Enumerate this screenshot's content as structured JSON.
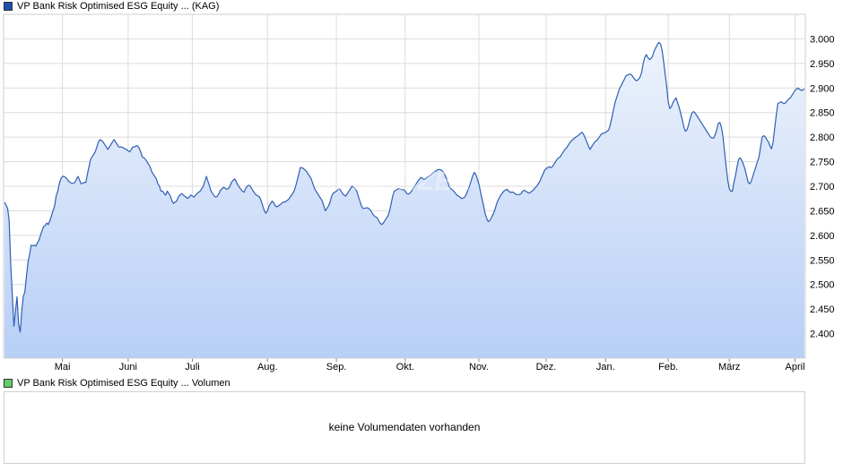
{
  "price_legend": {
    "label": "VP Bank Risk Optimised ESG Equity ... (KAG)",
    "color": "#1f4fb0"
  },
  "volume_legend": {
    "label": "VP Bank Risk Optimised ESG Equity ... Volumen",
    "color": "#66cc66"
  },
  "volume_panel": {
    "empty_text": "keine Volumendaten vorhanden"
  },
  "watermark": "FINANZEN",
  "chart_data": {
    "type": "area",
    "line_color": "#2f5fb3",
    "fill_top_color": "#eef3fc",
    "fill_bottom_color": "#b7cff6",
    "grid": true,
    "ylim": [
      2350,
      3050
    ],
    "y_ticks": [
      {
        "value": 2400,
        "label": "2.400"
      },
      {
        "value": 2450,
        "label": "2.450"
      },
      {
        "value": 2500,
        "label": "2.500"
      },
      {
        "value": 2550,
        "label": "2.550"
      },
      {
        "value": 2600,
        "label": "2.600"
      },
      {
        "value": 2650,
        "label": "2.650"
      },
      {
        "value": 2700,
        "label": "2.700"
      },
      {
        "value": 2750,
        "label": "2.750"
      },
      {
        "value": 2800,
        "label": "2.800"
      },
      {
        "value": 2850,
        "label": "2.850"
      },
      {
        "value": 2900,
        "label": "2.900"
      },
      {
        "value": 2950,
        "label": "2.950"
      },
      {
        "value": 3000,
        "label": "3.000"
      }
    ],
    "x_ticks": [
      {
        "index": 37,
        "label": "Mai"
      },
      {
        "index": 79,
        "label": "Juni"
      },
      {
        "index": 120,
        "label": "Juli"
      },
      {
        "index": 168,
        "label": "Aug."
      },
      {
        "index": 212,
        "label": "Sep."
      },
      {
        "index": 256,
        "label": "Okt."
      },
      {
        "index": 303,
        "label": "Nov."
      },
      {
        "index": 346,
        "label": "Dez."
      },
      {
        "index": 384,
        "label": "Jan."
      },
      {
        "index": 424,
        "label": "Feb."
      },
      {
        "index": 463,
        "label": "März"
      },
      {
        "index": 505,
        "label": "April"
      }
    ],
    "series": [
      {
        "values": [
          2667,
          2662,
          2655,
          2630,
          2540,
          2480,
          2415,
          2445,
          2475,
          2420,
          2403,
          2445,
          2475,
          2485,
          2515,
          2545,
          2560,
          2580,
          2579,
          2580,
          2578,
          2585,
          2590,
          2600,
          2610,
          2618,
          2620,
          2625,
          2622,
          2630,
          2640,
          2650,
          2660,
          2680,
          2690,
          2705,
          2715,
          2720,
          2720,
          2718,
          2715,
          2710,
          2708,
          2706,
          2706,
          2708,
          2715,
          2720,
          2712,
          2705,
          2706,
          2708,
          2708,
          2725,
          2740,
          2755,
          2760,
          2765,
          2770,
          2780,
          2790,
          2795,
          2793,
          2790,
          2785,
          2780,
          2775,
          2780,
          2785,
          2790,
          2795,
          2790,
          2785,
          2780,
          2780,
          2780,
          2778,
          2776,
          2775,
          2772,
          2770,
          2775,
          2780,
          2780,
          2782,
          2782,
          2778,
          2770,
          2760,
          2758,
          2755,
          2750,
          2745,
          2740,
          2730,
          2725,
          2720,
          2715,
          2705,
          2700,
          2690,
          2690,
          2685,
          2682,
          2690,
          2685,
          2680,
          2670,
          2665,
          2668,
          2670,
          2678,
          2682,
          2685,
          2683,
          2680,
          2678,
          2675,
          2678,
          2682,
          2680,
          2678,
          2682,
          2685,
          2688,
          2690,
          2695,
          2700,
          2710,
          2720,
          2710,
          2700,
          2690,
          2685,
          2680,
          2678,
          2680,
          2685,
          2692,
          2695,
          2698,
          2696,
          2694,
          2695,
          2700,
          2708,
          2712,
          2715,
          2710,
          2703,
          2698,
          2694,
          2690,
          2688,
          2695,
          2700,
          2702,
          2700,
          2695,
          2690,
          2685,
          2682,
          2680,
          2678,
          2670,
          2660,
          2650,
          2645,
          2650,
          2660,
          2665,
          2670,
          2666,
          2660,
          2658,
          2660,
          2662,
          2665,
          2668,
          2668,
          2670,
          2672,
          2676,
          2680,
          2685,
          2690,
          2700,
          2712,
          2725,
          2738,
          2738,
          2736,
          2733,
          2730,
          2725,
          2720,
          2715,
          2705,
          2696,
          2690,
          2685,
          2680,
          2675,
          2670,
          2660,
          2650,
          2655,
          2660,
          2668,
          2680,
          2686,
          2688,
          2690,
          2693,
          2695,
          2690,
          2685,
          2682,
          2680,
          2685,
          2690,
          2695,
          2700,
          2698,
          2695,
          2690,
          2680,
          2670,
          2660,
          2655,
          2655,
          2656,
          2656,
          2654,
          2650,
          2645,
          2640,
          2638,
          2636,
          2630,
          2625,
          2622,
          2625,
          2630,
          2635,
          2640,
          2650,
          2665,
          2680,
          2690,
          2692,
          2694,
          2695,
          2694,
          2693,
          2693,
          2690,
          2685,
          2684,
          2686,
          2690,
          2695,
          2700,
          2705,
          2710,
          2714,
          2718,
          2716,
          2714,
          2715,
          2718,
          2720,
          2722,
          2725,
          2728,
          2730,
          2732,
          2734,
          2734,
          2733,
          2730,
          2725,
          2718,
          2710,
          2700,
          2695,
          2693,
          2690,
          2686,
          2682,
          2680,
          2678,
          2675,
          2676,
          2678,
          2684,
          2692,
          2700,
          2710,
          2720,
          2728,
          2725,
          2715,
          2705,
          2690,
          2675,
          2660,
          2645,
          2635,
          2628,
          2630,
          2636,
          2642,
          2650,
          2660,
          2670,
          2676,
          2682,
          2686,
          2690,
          2692,
          2694,
          2690,
          2688,
          2688,
          2688,
          2685,
          2683,
          2683,
          2683,
          2685,
          2690,
          2692,
          2690,
          2688,
          2686,
          2688,
          2690,
          2693,
          2697,
          2700,
          2705,
          2710,
          2718,
          2725,
          2732,
          2736,
          2738,
          2740,
          2738,
          2740,
          2745,
          2750,
          2755,
          2758,
          2760,
          2765,
          2770,
          2775,
          2778,
          2783,
          2788,
          2792,
          2795,
          2798,
          2800,
          2802,
          2805,
          2808,
          2810,
          2805,
          2798,
          2790,
          2782,
          2775,
          2780,
          2785,
          2790,
          2792,
          2796,
          2800,
          2805,
          2808,
          2808,
          2810,
          2812,
          2815,
          2825,
          2840,
          2855,
          2870,
          2880,
          2890,
          2900,
          2905,
          2912,
          2918,
          2925,
          2926,
          2928,
          2928,
          2925,
          2920,
          2916,
          2915,
          2918,
          2922,
          2932,
          2950,
          2962,
          2968,
          2962,
          2958,
          2960,
          2965,
          2975,
          2982,
          2988,
          2993,
          2990,
          2978,
          2955,
          2930,
          2903,
          2872,
          2858,
          2862,
          2870,
          2876,
          2880,
          2870,
          2860,
          2848,
          2835,
          2820,
          2812,
          2815,
          2825,
          2838,
          2848,
          2852,
          2850,
          2845,
          2840,
          2835,
          2830,
          2825,
          2820,
          2815,
          2810,
          2805,
          2800,
          2798,
          2798,
          2805,
          2815,
          2828,
          2830,
          2820,
          2800,
          2770,
          2740,
          2712,
          2695,
          2690,
          2690,
          2708,
          2722,
          2740,
          2755,
          2758,
          2752,
          2745,
          2735,
          2722,
          2708,
          2705,
          2710,
          2720,
          2730,
          2740,
          2750,
          2760,
          2780,
          2800,
          2803,
          2800,
          2795,
          2790,
          2782,
          2776,
          2790,
          2818,
          2845,
          2868,
          2870,
          2872,
          2870,
          2868,
          2870,
          2874,
          2878,
          2880,
          2885,
          2890,
          2895,
          2898,
          2900,
          2897,
          2895,
          2896,
          2898
        ]
      }
    ]
  }
}
